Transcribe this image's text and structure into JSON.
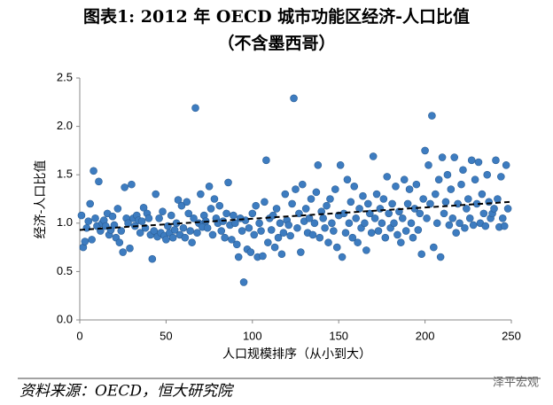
{
  "chart_data": {
    "type": "scatter",
    "title": "图表1:   2012 年 OECD 城市功能区经济-人口比值",
    "subtitle": "（不含墨西哥）",
    "x_label": "人口规模排序（从小到大）",
    "y_label": "经济-人口比值",
    "source": "资料来源：OECD，恒大研究院",
    "watermark": "泽平宏观",
    "color": "#3d7cc0",
    "xlim": [
      0,
      250
    ],
    "xticks": [
      0,
      50,
      100,
      150,
      200,
      250
    ],
    "ylim": [
      0,
      2.5
    ],
    "yticks": [
      {
        "value": 0,
        "label": "0.0"
      },
      0.5,
      {
        "value": 1,
        "label": "1.0"
      },
      1.5,
      {
        "value": 2,
        "label": "2.0"
      },
      2.5
    ],
    "trend": {
      "x": [
        0,
        250
      ],
      "y": [
        0.93,
        1.22
      ]
    },
    "x": [
      1,
      2,
      3,
      4,
      5,
      6,
      7,
      8,
      9,
      10,
      11,
      12,
      13,
      14,
      15,
      16,
      17,
      18,
      19,
      20,
      21,
      22,
      23,
      24,
      25,
      26,
      27,
      28,
      29,
      30,
      31,
      32,
      33,
      34,
      35,
      36,
      37,
      38,
      39,
      40,
      41,
      42,
      43,
      44,
      45,
      46,
      47,
      48,
      49,
      50,
      51,
      52,
      53,
      54,
      55,
      56,
      57,
      58,
      59,
      60,
      61,
      62,
      63,
      64,
      65,
      66,
      67,
      68,
      69,
      70,
      71,
      72,
      73,
      74,
      75,
      76,
      77,
      78,
      79,
      80,
      81,
      82,
      83,
      84,
      85,
      86,
      87,
      88,
      89,
      90,
      91,
      92,
      93,
      94,
      95,
      96,
      97,
      98,
      99,
      100,
      101,
      102,
      103,
      104,
      105,
      106,
      107,
      108,
      109,
      110,
      111,
      112,
      113,
      114,
      115,
      116,
      117,
      118,
      119,
      120,
      121,
      122,
      123,
      124,
      125,
      126,
      127,
      128,
      129,
      130,
      131,
      132,
      133,
      134,
      135,
      136,
      137,
      138,
      139,
      140,
      141,
      142,
      143,
      144,
      145,
      146,
      147,
      148,
      149,
      150,
      151,
      152,
      153,
      154,
      155,
      156,
      157,
      158,
      159,
      160,
      161,
      162,
      163,
      164,
      165,
      166,
      167,
      168,
      169,
      170,
      171,
      172,
      173,
      174,
      175,
      176,
      177,
      178,
      179,
      180,
      181,
      182,
      183,
      184,
      185,
      186,
      187,
      188,
      189,
      190,
      191,
      192,
      193,
      194,
      195,
      196,
      197,
      198,
      199,
      200,
      201,
      202,
      203,
      204,
      205,
      206,
      207,
      208,
      209,
      210,
      211,
      212,
      213,
      214,
      215,
      216,
      217,
      218,
      219,
      220,
      221,
      222,
      223,
      224,
      225,
      226,
      227,
      228,
      229,
      230,
      231,
      232,
      233,
      234,
      235,
      236,
      237,
      238,
      239,
      240,
      241,
      242,
      243,
      244,
      245,
      246,
      247,
      248
    ],
    "values": [
      1.08,
      0.75,
      0.81,
      0.95,
      1.02,
      1.2,
      0.83,
      1.54,
      1.05,
      0.97,
      1.43,
      0.92,
      1.0,
      1.03,
      0.97,
      1.1,
      0.88,
      0.93,
      1.07,
      0.98,
      0.85,
      1.15,
      0.8,
      0.92,
      0.7,
      1.37,
      1.05,
      1.0,
      0.74,
      1.4,
      1.05,
      0.97,
      1.08,
      1.03,
      0.9,
      1.02,
      1.16,
      0.95,
      1.1,
      1.05,
      0.88,
      0.63,
      0.92,
      1.3,
      0.86,
      1.05,
      0.9,
      1.12,
      0.87,
      0.83,
      0.97,
      0.9,
      1.08,
      0.85,
      0.93,
      1.0,
      1.24,
      0.88,
      1.18,
      0.95,
      0.85,
      1.22,
      1.1,
      0.92,
      0.8,
      1.05,
      2.19,
      0.9,
      1.0,
      1.3,
      0.96,
      1.08,
      1.02,
      0.95,
      1.38,
      1.15,
      0.88,
      1.25,
      1.05,
      1.0,
      1.18,
      0.92,
      1.02,
      0.85,
      1.1,
      1.42,
      0.98,
      0.83,
      1.08,
      1.0,
      0.78,
      0.65,
      1.05,
      0.92,
      0.39,
      1.03,
      0.73,
      0.95,
      0.7,
      1.1,
      0.88,
      1.18,
      0.65,
      1.0,
      0.92,
      0.66,
      1.22,
      1.65,
      0.8,
      1.05,
      0.93,
      1.08,
      0.75,
      1.15,
      0.85,
      1.0,
      0.68,
      0.9,
      1.3,
      1.03,
      0.98,
      0.87,
      1.2,
      2.29,
      1.35,
      0.95,
      1.1,
      0.7,
      1.4,
      1.02,
      1.15,
      0.9,
      1.05,
      1.25,
      0.88,
      1.0,
      1.32,
      1.6,
      0.85,
      1.12,
      1.05,
      0.95,
      1.18,
      0.8,
      1.25,
      1.0,
      0.92,
      1.35,
      0.75,
      1.08,
      1.6,
      0.65,
      1.1,
      0.9,
      1.45,
      1.0,
      1.22,
      0.85,
      1.38,
      1.05,
      0.8,
      1.15,
      0.95,
      1.28,
      1.0,
      0.72,
      1.2,
      1.1,
      0.9,
      1.69,
      1.05,
      1.3,
      0.92,
      1.15,
      1.0,
      1.25,
      0.85,
      1.48,
      1.1,
      0.95,
      1.2,
      1.0,
      1.38,
      0.88,
      1.12,
      0.8,
      1.05,
      1.45,
      0.92,
      1.2,
      1.35,
      1.0,
      0.85,
      1.15,
      1.4,
      0.93,
      1.1,
      0.68,
      1.25,
      1.75,
      1.05,
      1.6,
      1.2,
      2.11,
      0.75,
      1.3,
      1.0,
      1.45,
      0.65,
      1.68,
      1.1,
      1.22,
      1.5,
      0.98,
      1.35,
      1.05,
      1.68,
      0.9,
      1.2,
      1.0,
      1.4,
      1.55,
      0.95,
      1.15,
      1.25,
      1.05,
      1.65,
      0.98,
      1.45,
      1.2,
      1.63,
      1.0,
      1.3,
      1.1,
      0.97,
      1.5,
      1.22,
      1.05,
      1.1,
      1.15,
      1.65,
      1.25,
      0.96,
      1.48,
      1.05,
      0.97,
      1.6,
      1.15
    ]
  }
}
